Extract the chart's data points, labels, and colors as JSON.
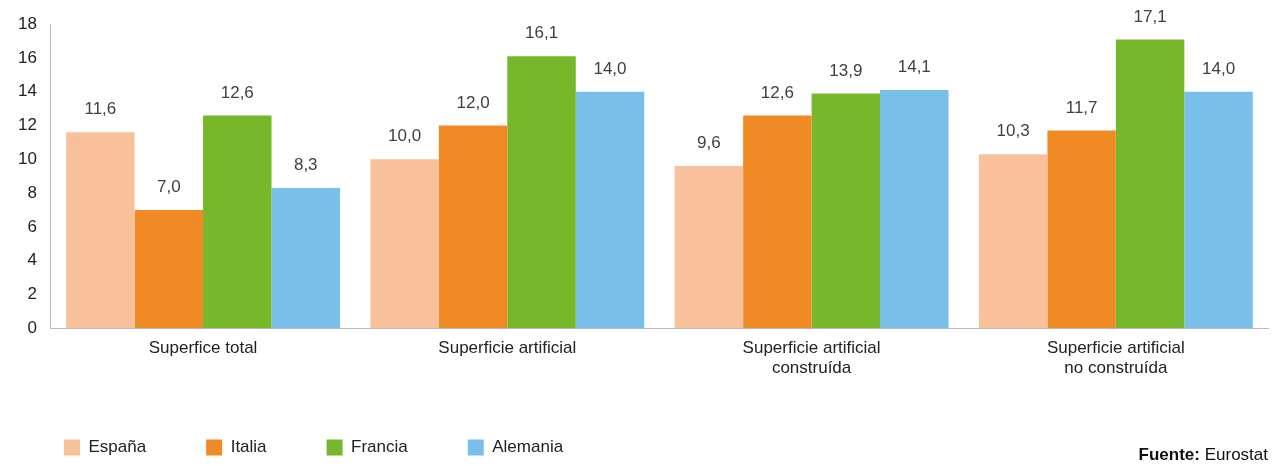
{
  "chart_data": {
    "type": "bar",
    "categories": [
      "Superfice total",
      "Superficie artificial",
      "Superficie artificial construída",
      "Superficie artificial no construída"
    ],
    "series": [
      {
        "name": "España",
        "color": "#f9c19b",
        "values": [
          11.6,
          10.0,
          9.6,
          10.3
        ],
        "value_labels": [
          "11,6",
          "10,0",
          "9,6",
          "10,3"
        ]
      },
      {
        "name": "Italia",
        "color": "#f08a24",
        "values": [
          7.0,
          12.0,
          12.6,
          11.7
        ],
        "value_labels": [
          "7,0",
          "12,0",
          "12,6",
          "11,7"
        ]
      },
      {
        "name": "Francia",
        "color": "#76b82a",
        "values": [
          12.6,
          16.1,
          13.9,
          17.1
        ],
        "value_labels": [
          "12,6",
          "16,1",
          "13,9",
          "17,1"
        ]
      },
      {
        "name": "Alemania",
        "color": "#78bfea",
        "values": [
          8.3,
          14.0,
          14.1,
          14.0
        ],
        "value_labels": [
          "8,3",
          "14,0",
          "14,1",
          "14,0"
        ]
      }
    ],
    "ylim": [
      0,
      18
    ],
    "yticks": [
      0,
      2,
      4,
      6,
      8,
      10,
      12,
      14,
      16,
      18
    ],
    "grid": false,
    "legend": "bottom left",
    "annotations": [
      "Fuente: Eurostat"
    ]
  }
}
